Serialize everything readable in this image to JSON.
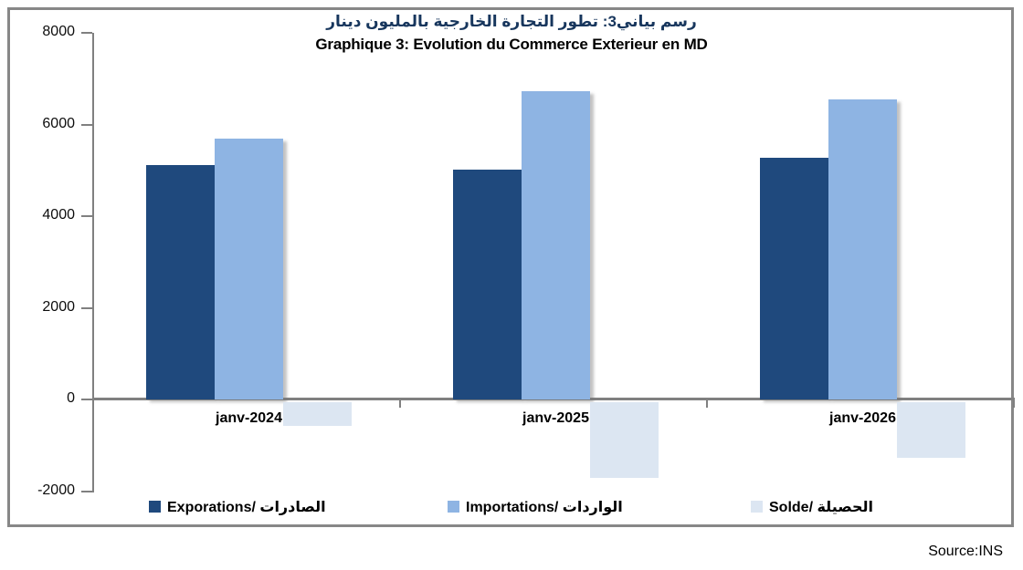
{
  "chart": {
    "title_ar": "رسم بياني3:  تطور التجارة الخارجية بالمليون دينار",
    "title_fr": "Graphique 3: Evolution du Commerce Exterieur en MD",
    "source": "Source:INS"
  },
  "chart_data": {
    "type": "bar",
    "title": "Graphique 3: Evolution du Commerce Exterieur en MD",
    "title_arabic": "رسم بياني3:  تطور التجارة الخارجية بالمليون دينار",
    "categories": [
      "janv-2024",
      "janv-2025",
      "janv-2026"
    ],
    "series": [
      {
        "name": "Exporations/ الصادرات",
        "color": "#1F497D",
        "values": [
          5110,
          5010,
          5270
        ]
      },
      {
        "name": "Importations/ الواردات",
        "color": "#8EB4E3",
        "values": [
          5690,
          6730,
          6550
        ]
      },
      {
        "name": "Solde/ الحصيلة",
        "color": "#DCE6F2",
        "values": [
          -580,
          -1720,
          -1280
        ]
      }
    ],
    "xlabel": "",
    "ylabel": "",
    "ylim": [
      -2000,
      8000
    ],
    "yticks": [
      8000,
      6000,
      4000,
      2000,
      0,
      -2000
    ],
    "unit": "MD (million dinars)",
    "grid": false,
    "legend_position": "bottom",
    "source": "Source:INS",
    "colors": {
      "exports": "#1F497D",
      "imports": "#8EB4E3",
      "solde": "#DCE6F2",
      "axis": "#808080",
      "frame": "#878787"
    }
  }
}
